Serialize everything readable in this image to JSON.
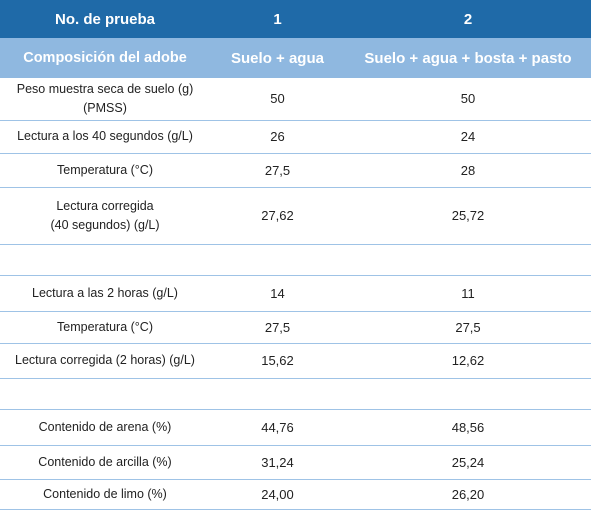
{
  "table": {
    "header1": [
      "No. de prueba",
      "1",
      "2"
    ],
    "header2": [
      "Composición del adobe",
      "Suelo + agua",
      "Suelo + agua + bosta + pasto"
    ],
    "rows": [
      {
        "label_line1": "Peso muestra seca de suelo (g)",
        "label_line2": "(PMSS)",
        "v1": "50",
        "v2": "50"
      },
      {
        "label_line1": "Lectura a los 40 segundos (g/L)",
        "label_line2": "",
        "v1": "26",
        "v2": "24"
      },
      {
        "label_line1": "Temperatura (°C)",
        "label_line2": "",
        "v1": "27,5",
        "v2": "28"
      },
      {
        "label_line1": "Lectura corregida",
        "label_line2": "(40 segundos) (g/L)",
        "v1": "27,62",
        "v2": "25,72"
      },
      {
        "label_line1": "",
        "label_line2": "",
        "v1": "",
        "v2": ""
      },
      {
        "label_line1": "Lectura a las 2 horas (g/L)",
        "label_line2": "",
        "v1": "14",
        "v2": "11"
      },
      {
        "label_line1": "Temperatura (°C)",
        "label_line2": "",
        "v1": "27,5",
        "v2": "27,5"
      },
      {
        "label_line1": "Lectura corregida (2 horas) (g/L)",
        "label_line2": "",
        "v1": "15,62",
        "v2": "12,62"
      },
      {
        "label_line1": "",
        "label_line2": "",
        "v1": "",
        "v2": ""
      },
      {
        "label_line1": "Contenido de arena (%)",
        "label_line2": "",
        "v1": "44,76",
        "v2": "48,56"
      },
      {
        "label_line1": "Contenido de arcilla (%)",
        "label_line2": "",
        "v1": "31,24",
        "v2": "25,24"
      },
      {
        "label_line1": "Contenido de limo (%)",
        "label_line2": "",
        "v1": "24,00",
        "v2": "26,20"
      }
    ]
  }
}
